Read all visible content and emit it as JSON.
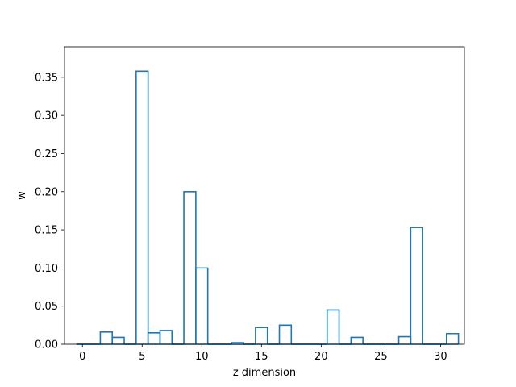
{
  "chart_data": {
    "type": "bar",
    "style": "step-histogram",
    "title": "",
    "xlabel": "z dimension",
    "ylabel": "w",
    "xlim": [
      -1.5,
      32.0
    ],
    "ylim": [
      0,
      0.39
    ],
    "grid": false,
    "series_color": "#1f77b4",
    "x_ticks": [
      0,
      5,
      10,
      15,
      20,
      25,
      30
    ],
    "x_tick_labels": [
      "0",
      "5",
      "10",
      "15",
      "20",
      "25",
      "30"
    ],
    "y_ticks": [
      0.0,
      0.05,
      0.1,
      0.15,
      0.2,
      0.25,
      0.3,
      0.35
    ],
    "y_tick_labels": [
      "0.00",
      "0.05",
      "0.10",
      "0.15",
      "0.20",
      "0.25",
      "0.30",
      "0.35"
    ],
    "categories": [
      0,
      1,
      2,
      3,
      4,
      5,
      6,
      7,
      8,
      9,
      10,
      11,
      12,
      13,
      14,
      15,
      16,
      17,
      18,
      19,
      20,
      21,
      22,
      23,
      24,
      25,
      26,
      27,
      28,
      29,
      30,
      31
    ],
    "values": [
      0.0,
      0.0,
      0.016,
      0.009,
      0.0,
      0.358,
      0.015,
      0.018,
      0.0,
      0.2,
      0.1,
      0.0,
      0.0,
      0.002,
      0.0,
      0.022,
      0.0,
      0.025,
      0.0,
      0.0,
      0.0,
      0.045,
      0.0,
      0.009,
      0.0,
      0.0,
      0.0,
      0.01,
      0.153,
      0.0,
      0.0,
      0.014
    ]
  }
}
